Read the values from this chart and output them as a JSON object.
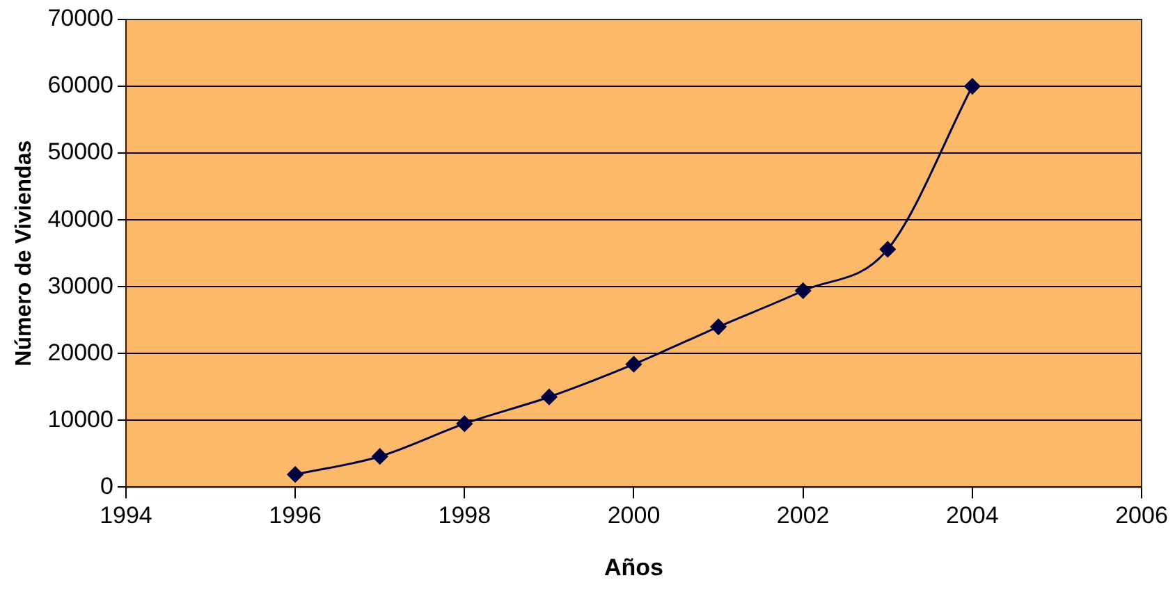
{
  "chart_data": {
    "type": "line",
    "xlabel": "Años",
    "ylabel": "Número de Viviendas",
    "x": [
      1996,
      1997,
      1998,
      1999,
      2000,
      2001,
      2002,
      2003,
      2004
    ],
    "series": [
      {
        "color": "#000040",
        "values": [
          1900,
          4600,
          9500,
          13500,
          18400,
          24000,
          29400,
          35600,
          60000
        ]
      }
    ],
    "xlim": [
      1994,
      2006
    ],
    "xticks": [
      1994,
      1996,
      1998,
      2000,
      2002,
      2004,
      2006
    ],
    "ylim": [
      0,
      70000
    ],
    "yticks": [
      0,
      10000,
      20000,
      30000,
      40000,
      50000,
      60000,
      70000
    ],
    "grid": "y",
    "marker": "diamond",
    "legend": false
  }
}
